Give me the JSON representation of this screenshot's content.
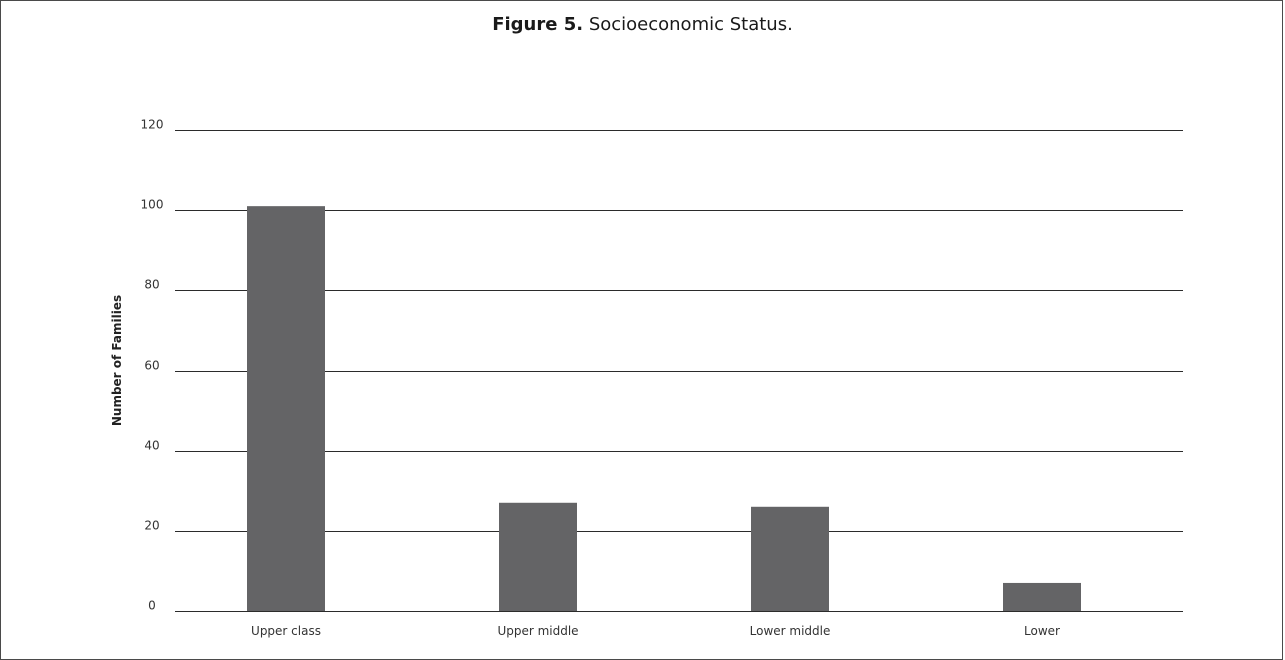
{
  "figure": {
    "label": "Figure 5.",
    "caption": "Socioeconomic Status."
  },
  "chart_data": {
    "type": "bar",
    "title": "Socioeconomic Status.",
    "xlabel": "",
    "ylabel": "Number of Families",
    "categories": [
      "Upper class",
      "Upper middle",
      "Lower middle",
      "Lower"
    ],
    "values": [
      101,
      27,
      26,
      7
    ],
    "ylim": [
      0,
      120
    ],
    "yticks": [
      0,
      20,
      40,
      60,
      80,
      100,
      120
    ],
    "grid": true,
    "bar_color": "#646466",
    "grid_color": "#2b2b2b"
  }
}
